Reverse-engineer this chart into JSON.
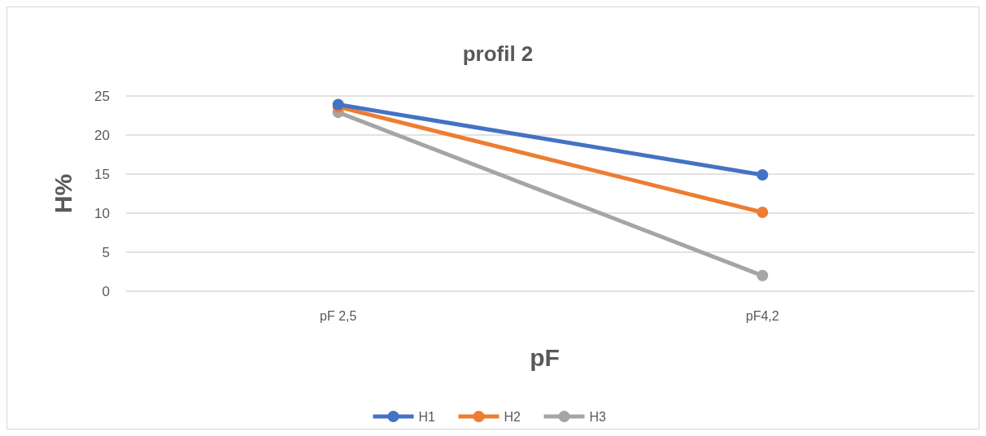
{
  "chart_data": {
    "type": "line",
    "title": "profil 2",
    "xlabel": "pF",
    "ylabel": "H%",
    "categories": [
      "pF 2,5",
      "pF4,2"
    ],
    "series": [
      {
        "name": "H1",
        "color": "#4472c4",
        "values": [
          23.9,
          14.9
        ]
      },
      {
        "name": "H2",
        "color": "#ed7d31",
        "values": [
          23.6,
          10.1
        ]
      },
      {
        "name": "H3",
        "color": "#a5a5a5",
        "values": [
          22.9,
          2.0
        ]
      }
    ],
    "ylim": [
      0,
      25
    ],
    "yticks": [
      0,
      5,
      10,
      15,
      20,
      25
    ],
    "grid": "y",
    "legend": "bottom",
    "marker": "circle",
    "line_style": "solid"
  }
}
